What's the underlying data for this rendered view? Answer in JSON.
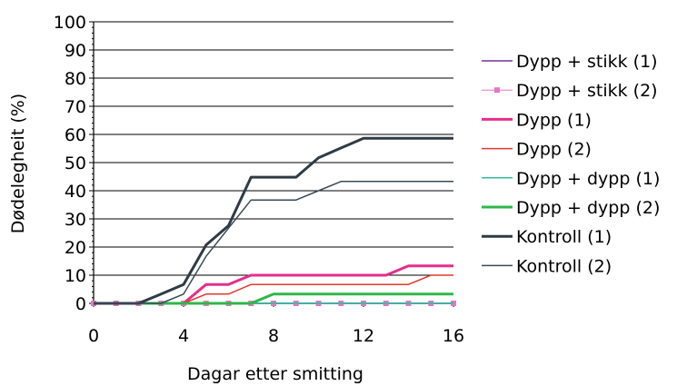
{
  "chart_data": {
    "type": "line",
    "title": "",
    "xlabel": "Dagar etter smitting",
    "ylabel": "Dødelegheit (%)",
    "xlim": [
      0,
      16
    ],
    "ylim": [
      0,
      100
    ],
    "x_ticks": [
      0,
      4,
      8,
      12,
      16
    ],
    "y_ticks": [
      0,
      10,
      20,
      30,
      40,
      50,
      60,
      70,
      80,
      90,
      100
    ],
    "grid": "horizontal",
    "legend_position": "right",
    "x": [
      0,
      1,
      2,
      3,
      4,
      5,
      6,
      7,
      8,
      9,
      10,
      11,
      12,
      13,
      14,
      15,
      16
    ],
    "series": [
      {
        "name": "Dypp + stikk (1)",
        "color": "#7030a0",
        "width": 1.5,
        "marker": "none",
        "values": [
          0,
          0,
          0,
          0,
          0,
          0,
          0,
          0,
          0,
          0,
          0,
          0,
          0,
          0,
          0,
          0,
          0
        ]
      },
      {
        "name": "Dypp + stikk (2)",
        "color": "#e377c2",
        "width": 1,
        "marker": "square",
        "values": [
          0,
          0,
          0,
          0,
          0,
          0,
          0,
          0,
          0,
          0,
          0,
          0,
          0,
          0,
          0,
          0,
          0
        ]
      },
      {
        "name": "Dypp (1)",
        "color": "#e62e8b",
        "width": 3,
        "marker": "none",
        "values": [
          0,
          0,
          0,
          0,
          0,
          6.7,
          6.7,
          10,
          10,
          10,
          10,
          10,
          10,
          10,
          13.3,
          13.3,
          13.3
        ]
      },
      {
        "name": "Dypp (2)",
        "color": "#e03a2c",
        "width": 1.5,
        "marker": "none",
        "values": [
          0,
          0,
          0,
          0,
          0,
          3.3,
          3.3,
          6.7,
          6.7,
          6.7,
          6.7,
          6.7,
          6.7,
          6.7,
          6.7,
          10,
          10
        ]
      },
      {
        "name": "Dypp + dypp (1)",
        "color": "#2bbf9f",
        "width": 1.5,
        "marker": "none",
        "values": [
          0,
          0,
          0,
          0,
          0,
          0,
          0,
          0,
          0,
          0,
          0,
          0,
          0,
          0,
          0,
          0,
          0
        ]
      },
      {
        "name": "Dypp + dypp (2)",
        "color": "#2db84a",
        "width": 3,
        "marker": "none",
        "values": [
          0,
          0,
          0,
          0,
          0,
          0,
          0,
          0,
          3.3,
          3.3,
          3.3,
          3.3,
          3.3,
          3.3,
          3.3,
          3.3,
          3.3
        ]
      },
      {
        "name": "Kontroll (1)",
        "color": "#2f3b45",
        "width": 3,
        "marker": "none",
        "values": [
          0,
          0,
          0,
          3.3,
          6.7,
          20.7,
          27.6,
          44.8,
          44.8,
          44.8,
          51.7,
          55.2,
          58.6,
          58.6,
          58.6,
          58.6,
          58.6
        ]
      },
      {
        "name": "Kontroll (2)",
        "color": "#3a4a58",
        "width": 1.5,
        "marker": "none",
        "values": [
          0,
          0,
          0,
          0,
          3.3,
          16.7,
          26.7,
          36.7,
          36.7,
          36.7,
          40,
          43.3,
          43.3,
          43.3,
          43.3,
          43.3,
          43.3
        ]
      }
    ]
  }
}
